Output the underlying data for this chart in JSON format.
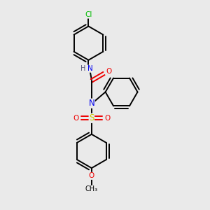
{
  "background_color": "#eaeaea",
  "atom_colors": {
    "C": "#000000",
    "N": "#0000ee",
    "O": "#ee0000",
    "S": "#cccc00",
    "Cl": "#00bb00",
    "H": "#000000"
  },
  "bond_color": "#000000",
  "bond_width": 1.4,
  "figsize": [
    3.0,
    3.0
  ],
  "dpi": 100
}
